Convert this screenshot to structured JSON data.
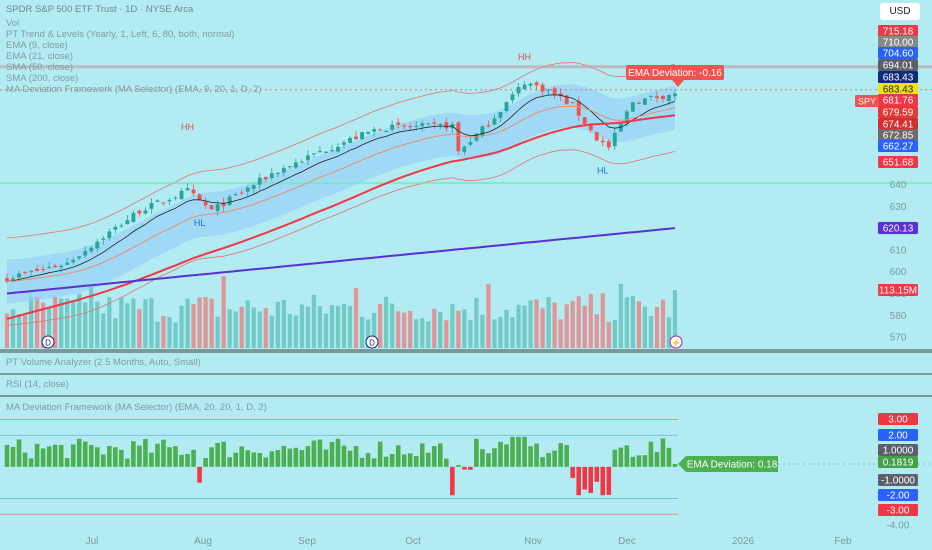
{
  "header": {
    "title": "SPDR S&P 500 ETF Trust · 1D · NYSE Arca",
    "currency_button": "USD"
  },
  "indicators": [
    "Vol",
    "PT Trend & Levels (Yearly, 1, Left, 6, 80, both, normal)",
    "EMA (9, close)",
    "EMA (21, close)",
    "SMA (50, close)",
    "SMA (200, close)",
    "MA Deviation Framework (MA Selector) (EMA, 9, 20, 1, D, 2)"
  ],
  "sub_panes": {
    "volume_analyzer": "PT Volume Analyzer (2.5 Months, Auto, Small)",
    "rsi": "RSI (14, close)",
    "deviation": "MA Deviation Framework (MA Selector) (EMA, 20, 20, 1, D, 2)"
  },
  "colors": {
    "background": "#b2ebf2",
    "up": "#26a69a",
    "down": "#ef5350",
    "sma50": "#f23645",
    "sma200": "#5b2fd6",
    "band_fill": "#90caf9",
    "histogram_up": "#4caf50",
    "histogram_down": "#f23645"
  },
  "chart_data": [
    {
      "type": "candlestick",
      "ticker": "SPY",
      "x_axis_labels": [
        "Jul",
        "Aug",
        "Sep",
        "Oct",
        "Nov",
        "Dec",
        "2026",
        "Feb"
      ],
      "y_ticks": [
        570,
        580,
        590,
        600,
        610,
        620,
        630,
        640,
        650,
        660,
        670,
        680,
        690,
        700,
        710
      ],
      "ylim": [
        565,
        720
      ],
      "start_price": 597,
      "end_price": 681.76,
      "swing_labels": [
        "HH",
        "HL",
        "HH",
        "HL"
      ],
      "annotation": "EMA Deviation: -0.16",
      "price_labels": [
        {
          "value": 715.18,
          "text": "715.18",
          "color": "#f23645"
        },
        {
          "value": 710.0,
          "text": "710.00",
          "color": "#888"
        },
        {
          "value": 704.6,
          "text": "704.60",
          "color": "#2962ff"
        },
        {
          "value": 694.01,
          "text": "694.01",
          "color": "#5d606b"
        },
        {
          "value": 683.43,
          "text": "683.43",
          "color": "#0d2c7c"
        },
        {
          "value": 683.43,
          "text": "683.43",
          "color": "#f5e11a"
        },
        {
          "value": 681.76,
          "text": "681.76",
          "color": "#f23645"
        },
        {
          "value": 679.59,
          "text": "679.59",
          "color": "#e53935"
        },
        {
          "value": 674.41,
          "text": "674.41",
          "color": "#d32f2f"
        },
        {
          "value": 672.85,
          "text": "672.85",
          "color": "#6b6b6b"
        },
        {
          "value": 662.27,
          "text": "662.27",
          "color": "#2962ff"
        },
        {
          "value": 651.68,
          "text": "651.68",
          "color": "#f23645"
        },
        {
          "value": 620.13,
          "text": "620.13",
          "color": "#5b2fd6"
        },
        {
          "value": 113.15,
          "text": "113.15M",
          "color": "#f23645"
        }
      ]
    },
    {
      "type": "bar",
      "name": "MA Deviation histogram",
      "annotation": "EMA Deviation: 0.18",
      "y_ticks": [
        {
          "value": 3,
          "text": "3.00",
          "color": "#f23645"
        },
        {
          "value": 2,
          "text": "2.00",
          "color": "#2962ff"
        },
        {
          "value": 1,
          "text": "1.0000",
          "color": "#5d606b"
        },
        {
          "value": 0.1819,
          "text": "0.1819",
          "color": "#43a047"
        },
        {
          "value": -1,
          "text": "-1.0000",
          "color": "#5d606b"
        },
        {
          "value": -2,
          "text": "-2.00",
          "color": "#2962ff"
        },
        {
          "value": -3,
          "text": "-3.00",
          "color": "#f23645"
        },
        {
          "value": -4,
          "text": "-4.00",
          "color": null
        }
      ],
      "ylim": [
        -4,
        3.6
      ]
    }
  ]
}
